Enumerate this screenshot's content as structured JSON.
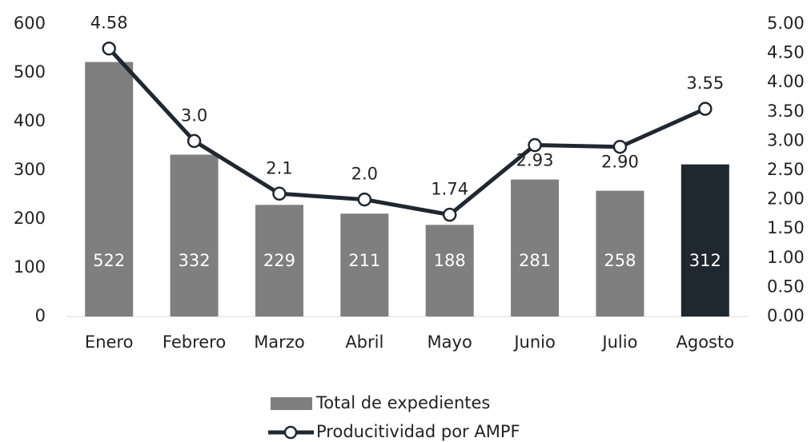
{
  "chart_data": {
    "type": "bar-line",
    "categories": [
      "Enero",
      "Febrero",
      "Marzo",
      "Abril",
      "Mayo",
      "Junio",
      "Julio",
      "Agosto"
    ],
    "series": [
      {
        "name": "Total de expedientes",
        "type": "bar",
        "color": "#7f7f7f",
        "colors": [
          "#7f7f7f",
          "#7f7f7f",
          "#7f7f7f",
          "#7f7f7f",
          "#7f7f7f",
          "#7f7f7f",
          "#7f7f7f",
          "#1f2730"
        ],
        "values": [
          522,
          332,
          229,
          211,
          188,
          281,
          258,
          312
        ]
      },
      {
        "name": "Producitividad por AMPF",
        "type": "line",
        "axis": "y2",
        "color": "#1f2730",
        "values": [
          4.58,
          3.0,
          2.1,
          2.0,
          1.74,
          2.93,
          2.9,
          3.55
        ],
        "value_labels": [
          "4.58",
          "3.0",
          "2.1",
          "2.0",
          "1.74",
          "2.93",
          "2.90",
          "3.55"
        ]
      }
    ],
    "ylim": [
      0,
      600
    ],
    "yticks": [
      0,
      100,
      200,
      300,
      400,
      500,
      600
    ],
    "y2lim": [
      0,
      5
    ],
    "y2ticks": [
      {
        "value": 0,
        "label": "0.00"
      },
      {
        "value": 0.5,
        "label": "0.50"
      },
      {
        "value": 1,
        "label": "1.00"
      },
      {
        "value": 1.5,
        "label": "1.50"
      },
      {
        "value": 2,
        "label": "2.00"
      },
      {
        "value": 2.5,
        "label": "2.50"
      },
      {
        "value": 3,
        "label": "3.00"
      },
      {
        "value": 3.5,
        "label": "3.50"
      },
      {
        "value": 4,
        "label": "4.00"
      },
      {
        "value": 4.5,
        "label": "4.50"
      },
      {
        "value": 5,
        "label": "5.00"
      }
    ],
    "legend": "bottom"
  }
}
